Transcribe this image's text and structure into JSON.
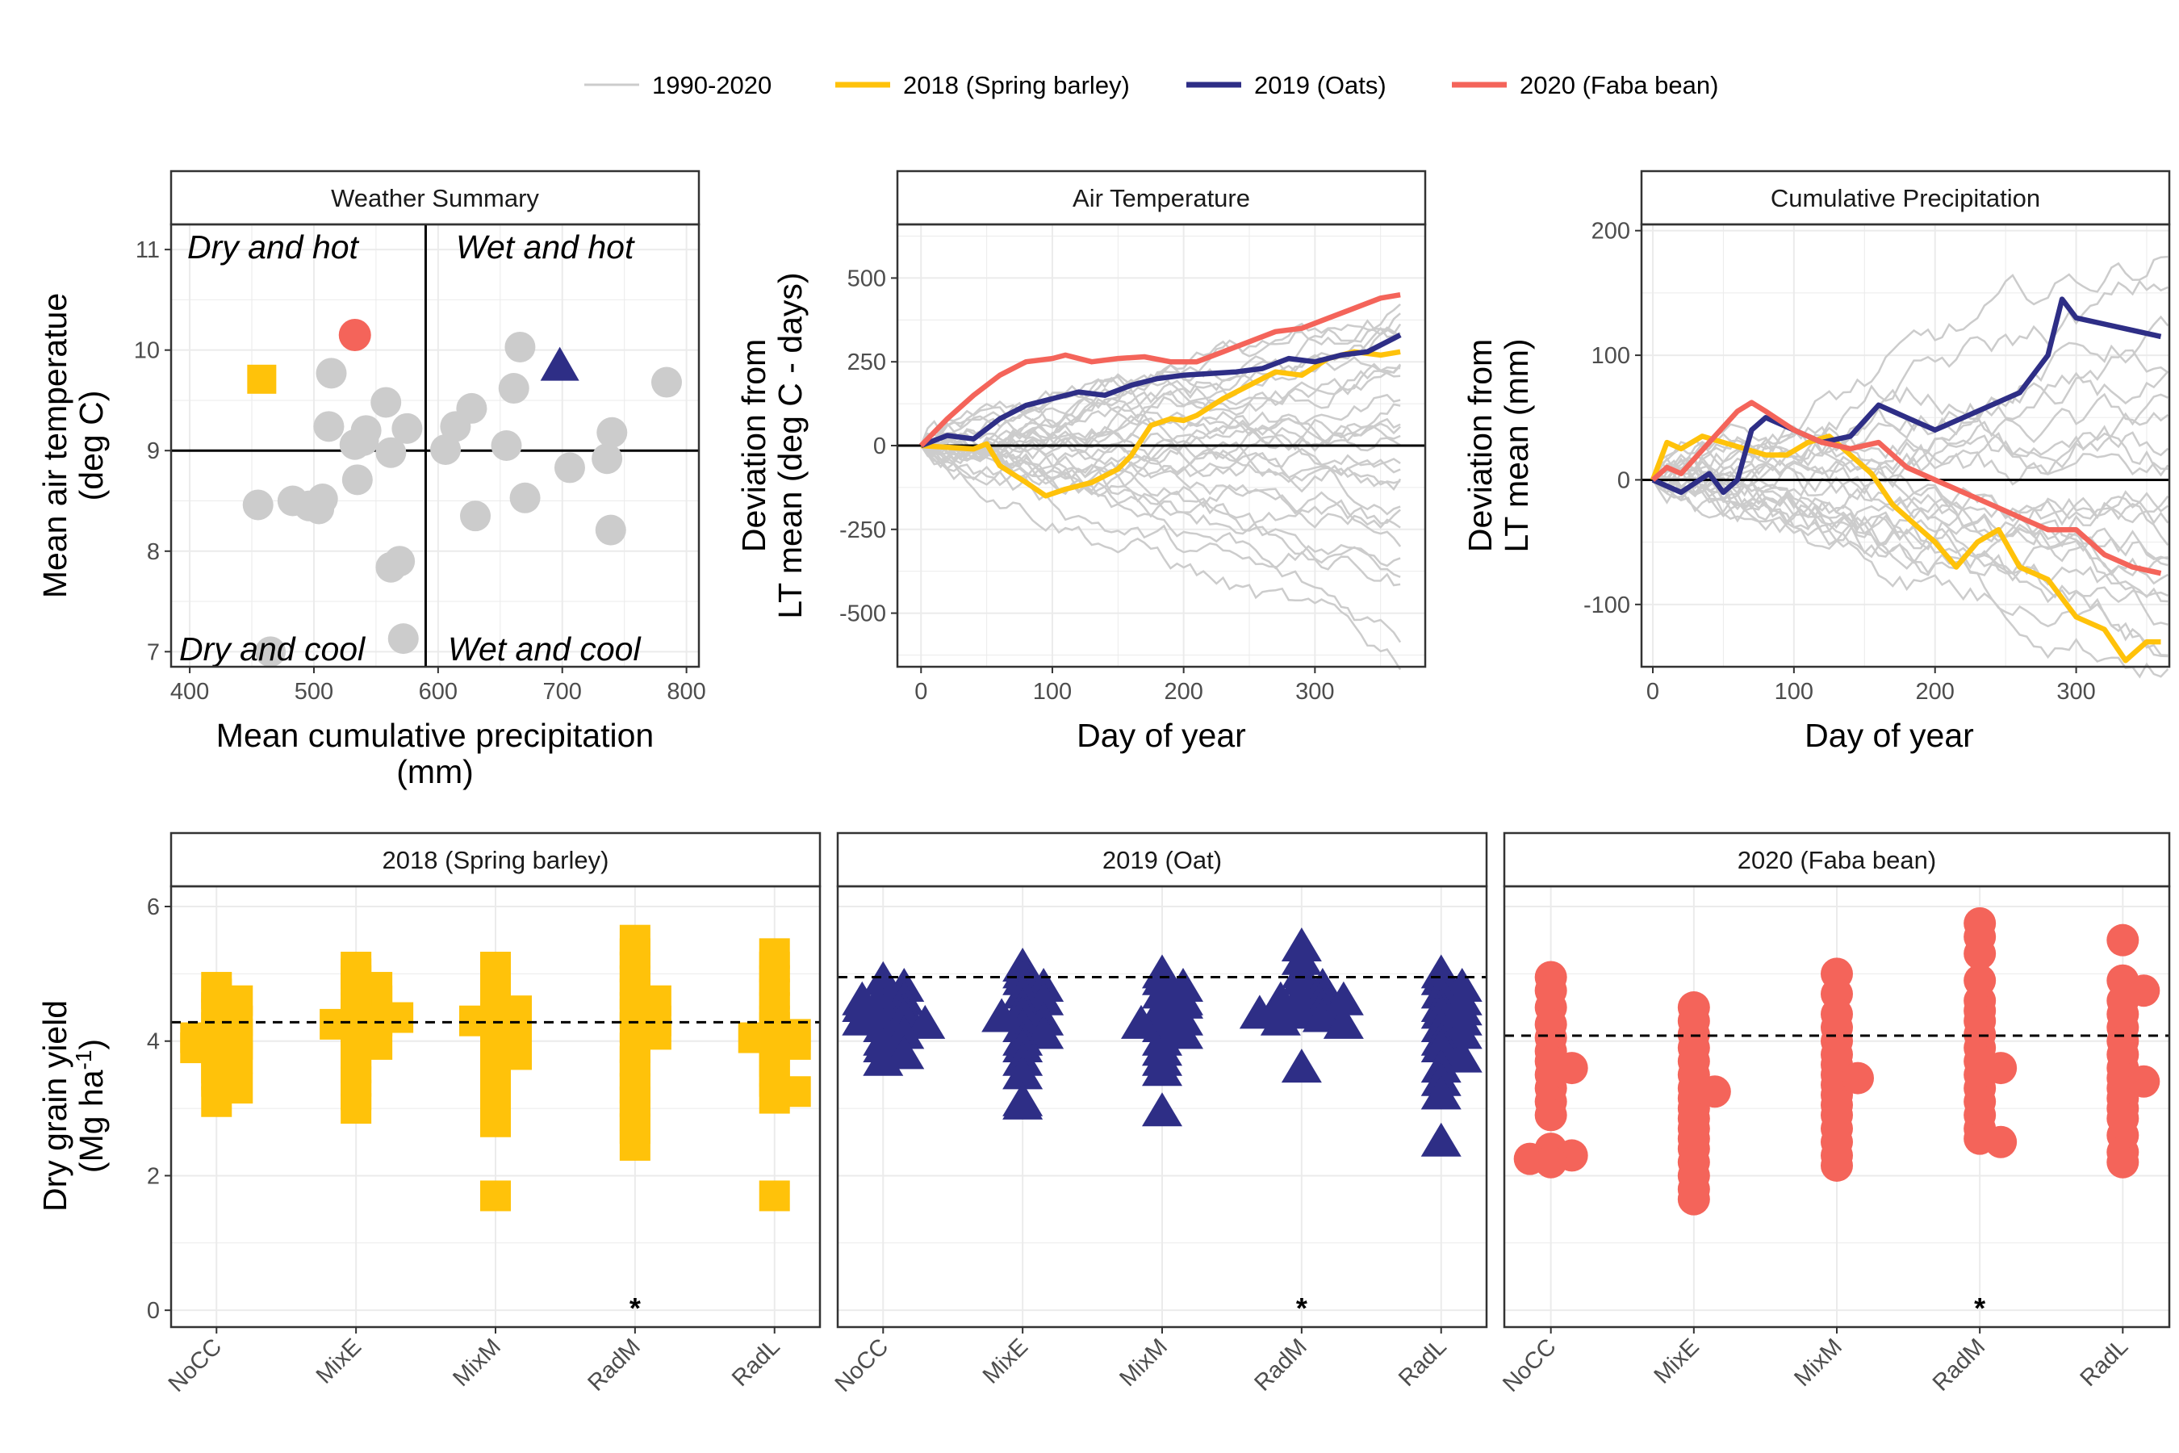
{
  "colors": {
    "historic": "#cccccc",
    "barley": "#ffc20a",
    "oats": "#2e2e86",
    "faba": "#f4645a",
    "grid": "#ebebeb",
    "frame": "#333333"
  },
  "legend": [
    {
      "label": "1990-2020",
      "color": "#cccccc",
      "width": "thin"
    },
    {
      "label": "2018 (Spring barley)",
      "color": "#ffc20a",
      "width": "thick"
    },
    {
      "label": "2019 (Oats)",
      "color": "#2e2e86",
      "width": "thick"
    },
    {
      "label": "2020 (Faba bean)",
      "color": "#f4645a",
      "width": "thick"
    }
  ],
  "chart_data": [
    {
      "type": "scatter",
      "title": "Weather Summary",
      "xlabel": "Mean cumulative precipitation\n(mm)",
      "ylabel": "Mean air temperatue\n(deg C)",
      "xlim": [
        385,
        810
      ],
      "ylim": [
        6.85,
        11.25
      ],
      "xticks": [
        400,
        500,
        600,
        700,
        800
      ],
      "yticks": [
        7,
        8,
        9,
        10,
        11
      ],
      "reference_lines": {
        "x": 590,
        "y": 9
      },
      "quadrant_labels": {
        "top_left": "Dry and hot",
        "top_right": "Wet and hot",
        "bottom_left": "Dry and cool",
        "bottom_right": "Wet and cool"
      },
      "historic_points": [
        [
          514,
          9.77
        ],
        [
          512,
          9.24
        ],
        [
          540,
          9.1
        ],
        [
          542,
          9.2
        ],
        [
          558,
          9.48
        ],
        [
          562,
          8.98
        ],
        [
          575,
          9.22
        ],
        [
          533,
          9.06
        ],
        [
          535,
          8.71
        ],
        [
          455,
          8.46
        ],
        [
          483,
          8.5
        ],
        [
          496,
          8.45
        ],
        [
          504,
          8.42
        ],
        [
          507,
          8.52
        ],
        [
          562,
          7.84
        ],
        [
          569,
          7.9
        ],
        [
          572,
          7.13
        ],
        [
          465,
          7.0
        ],
        [
          606,
          9.01
        ],
        [
          614,
          9.24
        ],
        [
          627,
          9.42
        ],
        [
          630,
          8.35
        ],
        [
          655,
          9.05
        ],
        [
          661,
          9.62
        ],
        [
          666,
          10.03
        ],
        [
          670,
          8.53
        ],
        [
          706,
          8.83
        ],
        [
          736,
          8.92
        ],
        [
          740,
          9.18
        ],
        [
          739,
          8.21
        ],
        [
          784,
          9.68
        ]
      ],
      "highlight_points": [
        {
          "name": "2018 (Spring barley)",
          "x": 458,
          "y": 9.71,
          "shape": "square",
          "color": "#ffc20a"
        },
        {
          "name": "2019 (Oats)",
          "x": 698,
          "y": 9.84,
          "shape": "triangle",
          "color": "#2e2e86"
        },
        {
          "name": "2020 (Faba bean)",
          "x": 533,
          "y": 10.15,
          "shape": "circle",
          "color": "#f4645a"
        }
      ]
    },
    {
      "type": "line",
      "title": "Air Temperature",
      "xlabel": "Day of year",
      "ylabel": "Deviation from\nLT mean (deg C - days)",
      "xlim": [
        -18,
        384
      ],
      "ylim": [
        -660,
        660
      ],
      "xticks": [
        0,
        100,
        200,
        300
      ],
      "yticks": [
        500,
        250,
        0,
        -250,
        -500
      ],
      "reference_line_y": 0,
      "historic_endpoints": [
        420,
        390,
        360,
        330,
        300,
        270,
        240,
        210,
        180,
        150,
        120,
        90,
        60,
        30,
        0,
        -30,
        -60,
        -90,
        -120,
        -160,
        -200,
        -240,
        -290,
        -340,
        -380,
        -410,
        -560,
        -650
      ],
      "series": [
        {
          "name": "2018 (Spring barley)",
          "color": "#ffc20a",
          "x": [
            0,
            20,
            40,
            50,
            60,
            80,
            95,
            110,
            130,
            150,
            160,
            175,
            190,
            200,
            210,
            230,
            250,
            270,
            290,
            310,
            330,
            350,
            365
          ],
          "y": [
            0,
            -5,
            -10,
            5,
            -60,
            -110,
            -150,
            -130,
            -110,
            -70,
            -30,
            60,
            80,
            75,
            90,
            140,
            180,
            220,
            210,
            260,
            280,
            270,
            280
          ]
        },
        {
          "name": "2019 (Oats)",
          "color": "#2e2e86",
          "x": [
            0,
            20,
            40,
            60,
            80,
            100,
            120,
            140,
            160,
            180,
            200,
            220,
            240,
            260,
            280,
            300,
            320,
            340,
            360,
            365
          ],
          "y": [
            0,
            30,
            20,
            80,
            120,
            140,
            160,
            150,
            180,
            200,
            210,
            215,
            220,
            230,
            260,
            250,
            270,
            280,
            320,
            330
          ]
        },
        {
          "name": "2020 (Faba bean)",
          "color": "#f4645a",
          "x": [
            0,
            20,
            40,
            60,
            80,
            100,
            110,
            130,
            150,
            170,
            190,
            210,
            230,
            250,
            270,
            290,
            310,
            330,
            350,
            365
          ],
          "y": [
            0,
            80,
            150,
            210,
            250,
            260,
            270,
            250,
            260,
            265,
            250,
            250,
            280,
            310,
            340,
            350,
            380,
            410,
            440,
            450
          ]
        }
      ]
    },
    {
      "type": "line",
      "title": "Cumulative Precipitation",
      "xlabel": "Day of year",
      "ylabel": "Deviation from\nLT mean (mm)",
      "xlim": [
        -8,
        366
      ],
      "ylim": [
        -150,
        205
      ],
      "xticks": [
        0,
        100,
        200,
        300
      ],
      "yticks": [
        200,
        100,
        0,
        -100
      ],
      "reference_line_y": 0,
      "historic_endpoints": [
        185,
        150,
        120,
        90,
        70,
        50,
        40,
        20,
        10,
        0,
        -10,
        -20,
        -30,
        -40,
        -50,
        -60,
        -70,
        -80,
        -90,
        -100,
        -110,
        -120,
        -130,
        -140
      ],
      "series": [
        {
          "name": "2018 (Spring barley)",
          "color": "#ffc20a",
          "x": [
            0,
            10,
            20,
            35,
            50,
            65,
            80,
            95,
            110,
            125,
            140,
            155,
            170,
            185,
            200,
            215,
            230,
            245,
            260,
            280,
            300,
            320,
            335,
            350,
            360
          ],
          "y": [
            0,
            30,
            25,
            35,
            30,
            25,
            20,
            20,
            30,
            35,
            20,
            5,
            -20,
            -35,
            -50,
            -70,
            -50,
            -40,
            -70,
            -80,
            -110,
            -120,
            -145,
            -130,
            -130
          ]
        },
        {
          "name": "2019 (Oats)",
          "color": "#2e2e86",
          "x": [
            0,
            20,
            40,
            50,
            60,
            70,
            80,
            100,
            120,
            140,
            160,
            180,
            200,
            220,
            240,
            260,
            280,
            290,
            300,
            320,
            340,
            360
          ],
          "y": [
            0,
            -10,
            5,
            -10,
            0,
            40,
            50,
            40,
            30,
            35,
            60,
            50,
            40,
            50,
            60,
            70,
            100,
            145,
            130,
            125,
            120,
            115
          ]
        },
        {
          "name": "2020 (Faba bean)",
          "color": "#f4645a",
          "x": [
            0,
            10,
            20,
            40,
            60,
            70,
            80,
            100,
            120,
            140,
            160,
            180,
            200,
            220,
            240,
            260,
            280,
            300,
            320,
            340,
            360
          ],
          "y": [
            0,
            10,
            5,
            30,
            55,
            62,
            55,
            40,
            30,
            25,
            30,
            10,
            0,
            -10,
            -20,
            -30,
            -40,
            -40,
            -60,
            -70,
            -75
          ]
        }
      ]
    },
    {
      "type": "scatter",
      "title": "2018 (Spring barley)",
      "categories": [
        "NoCC",
        "MixE",
        "MixM",
        "RadM",
        "RadL"
      ],
      "ylabel": "Dry grain yield\n(Mg ha-1)",
      "ylim": [
        -0.25,
        6.3
      ],
      "yticks": [
        0,
        2,
        4,
        6
      ],
      "reference_line_y": 4.28,
      "shape": "square",
      "color": "#ffc20a",
      "star_categories": [
        "RadM"
      ],
      "values": [
        [
          4.8,
          4.7,
          4.6,
          4.5,
          4.4,
          4.3,
          4.2,
          4.1,
          4.0,
          3.95,
          3.85,
          3.75,
          3.6,
          3.5,
          3.4,
          3.3,
          3.1,
          4.05,
          3.9
        ],
        [
          5.1,
          5.0,
          4.9,
          4.8,
          4.7,
          4.6,
          4.5,
          4.4,
          4.3,
          4.25,
          4.15,
          4.05,
          3.95,
          3.8,
          3.6,
          3.4,
          3.2,
          3.0,
          4.35
        ],
        [
          5.1,
          4.9,
          4.7,
          4.5,
          4.45,
          4.4,
          4.35,
          4.3,
          4.2,
          4.1,
          4.0,
          3.9,
          3.8,
          3.6,
          3.4,
          3.2,
          3.0,
          2.8,
          1.7
        ],
        [
          5.5,
          5.3,
          5.1,
          4.9,
          4.7,
          4.6,
          4.5,
          4.4,
          4.3,
          4.2,
          4.1,
          3.9,
          3.7,
          3.5,
          3.3,
          3.1,
          2.9,
          2.7,
          2.45
        ],
        [
          5.3,
          5.1,
          4.9,
          4.7,
          4.5,
          4.3,
          4.2,
          4.1,
          4.0,
          3.95,
          3.85,
          3.7,
          3.55,
          3.4,
          3.25,
          3.15,
          1.7,
          4.05
        ]
      ]
    },
    {
      "type": "scatter",
      "title": "2019 (Oat)",
      "categories": [
        "NoCC",
        "MixE",
        "MixM",
        "RadM",
        "RadL"
      ],
      "ylim": [
        -0.25,
        6.3
      ],
      "yticks": [
        0,
        2,
        4,
        6
      ],
      "reference_line_y": 4.95,
      "shape": "triangle",
      "color": "#2e2e86",
      "star_categories": [
        "RadM"
      ],
      "values": [
        [
          4.9,
          4.8,
          4.7,
          4.6,
          4.5,
          4.45,
          4.4,
          4.35,
          4.3,
          4.25,
          4.2,
          4.1,
          4.0,
          3.9,
          3.8,
          3.7,
          4.5,
          4.6
        ],
        [
          5.1,
          5.0,
          4.9,
          4.8,
          4.7,
          4.6,
          4.5,
          4.4,
          4.3,
          4.2,
          4.1,
          4.0,
          3.9,
          3.7,
          3.5,
          3.05,
          3.1,
          4.35
        ],
        [
          5.0,
          4.9,
          4.8,
          4.7,
          4.6,
          4.5,
          4.4,
          4.3,
          4.2,
          4.1,
          4.0,
          3.85,
          3.7,
          3.55,
          2.95,
          4.55,
          4.25
        ],
        [
          5.4,
          5.2,
          5.0,
          4.9,
          4.8,
          4.7,
          4.65,
          4.6,
          4.55,
          4.5,
          4.45,
          4.4,
          4.35,
          4.3,
          4.25,
          3.6,
          4.6,
          4.4
        ],
        [
          5.0,
          4.9,
          4.8,
          4.7,
          4.6,
          4.5,
          4.4,
          4.3,
          4.2,
          4.1,
          4.0,
          3.9,
          3.75,
          3.6,
          3.4,
          3.2,
          2.5,
          4.45
        ]
      ]
    },
    {
      "type": "scatter",
      "title": "2020 (Faba bean)",
      "categories": [
        "NoCC",
        "MixE",
        "MixM",
        "RadM",
        "RadL"
      ],
      "ylim": [
        -0.25,
        6.3
      ],
      "yticks": [
        0,
        2,
        4,
        6
      ],
      "reference_line_y": 4.08,
      "shape": "circle",
      "color": "#f4645a",
      "star_categories": [
        "RadM"
      ],
      "values": [
        [
          4.95,
          4.75,
          4.5,
          4.25,
          4.05,
          3.85,
          3.7,
          3.5,
          3.3,
          3.1,
          2.9,
          2.4,
          2.3,
          2.25,
          2.2,
          3.6
        ],
        [
          4.5,
          4.3,
          4.1,
          3.9,
          3.7,
          3.5,
          3.3,
          3.15,
          3.0,
          2.85,
          2.7,
          2.55,
          2.4,
          2.2,
          2.0,
          1.8,
          1.65,
          3.25
        ],
        [
          5.0,
          4.7,
          4.4,
          4.2,
          4.0,
          3.8,
          3.65,
          3.5,
          3.35,
          3.2,
          3.05,
          2.9,
          2.7,
          2.5,
          2.3,
          2.15,
          3.45
        ],
        [
          5.75,
          5.55,
          5.3,
          4.9,
          4.6,
          4.45,
          4.3,
          4.1,
          3.9,
          3.7,
          3.5,
          3.3,
          3.1,
          2.9,
          2.7,
          2.55,
          2.5,
          3.6
        ],
        [
          5.5,
          4.9,
          4.75,
          4.6,
          4.4,
          4.2,
          4.0,
          3.8,
          3.6,
          3.45,
          3.3,
          3.15,
          3.0,
          2.85,
          2.6,
          2.35,
          2.2,
          3.4
        ]
      ]
    }
  ]
}
